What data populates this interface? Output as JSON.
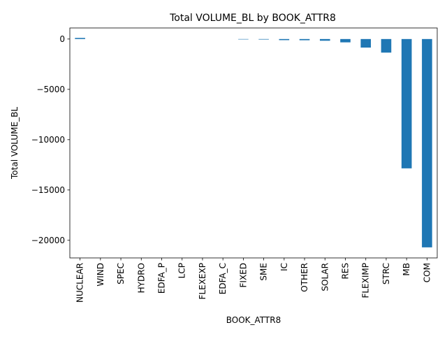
{
  "chart_data": {
    "type": "bar",
    "title": "Total VOLUME_BL by BOOK_ATTR8",
    "xlabel": "BOOK_ATTR8",
    "ylabel": "Total VOLUME_BL",
    "categories": [
      "NUCLEAR",
      "WIND",
      "SPEC",
      "HYDRO",
      "EDFA_P",
      "LCP",
      "FLEXEXP",
      "EDFA_C",
      "FIXED",
      "SME",
      "IC",
      "OTHER",
      "SOLAR",
      "RES",
      "FLEXIMP",
      "STRC",
      "MB",
      "COM"
    ],
    "values": [
      110,
      0,
      0,
      0,
      0,
      0,
      0,
      0,
      -40,
      -50,
      -110,
      -120,
      -170,
      -330,
      -850,
      -1350,
      -12850,
      -20700
    ],
    "ylim": [
      -21750,
      1100
    ],
    "yticks": [
      0,
      -5000,
      -10000,
      -15000,
      -20000
    ],
    "ytick_labels": [
      "0",
      "−5000",
      "−10000",
      "−15000",
      "−20000"
    ],
    "grid": false,
    "legend": false,
    "bar_color": "#1f77b4"
  }
}
